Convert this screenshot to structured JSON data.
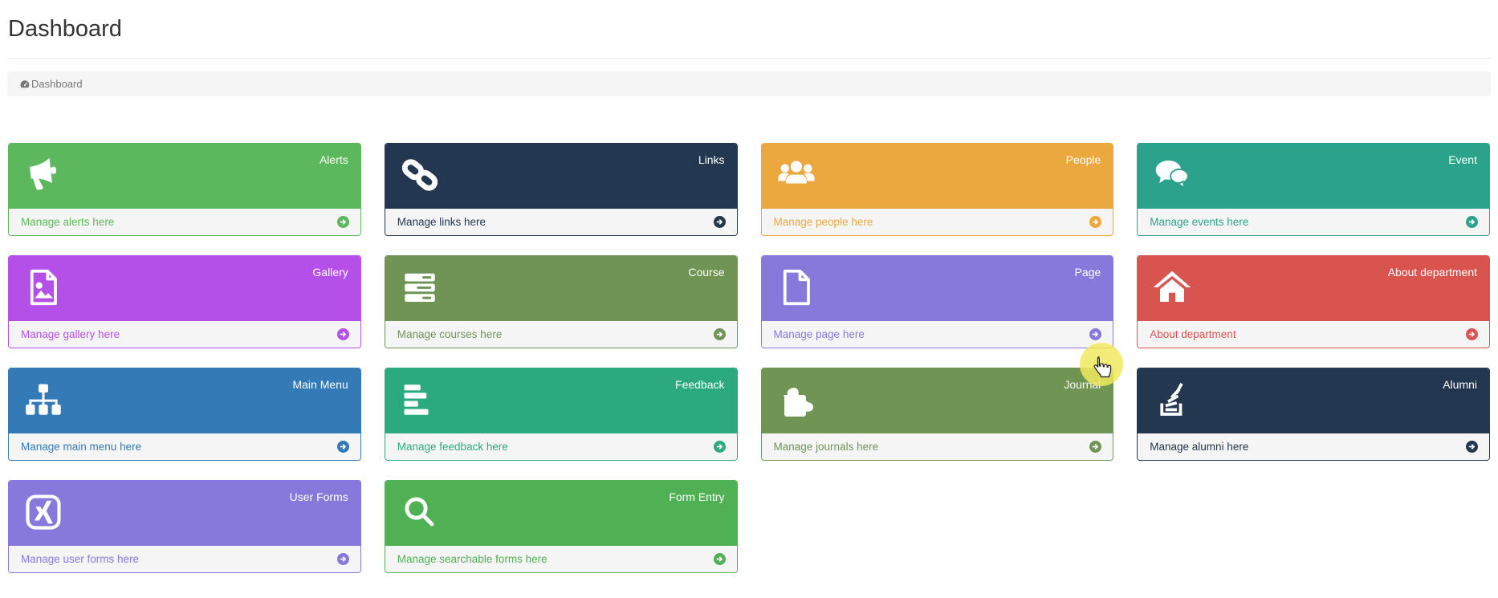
{
  "page": {
    "title": "Dashboard"
  },
  "breadcrumb": {
    "icon": "dashboard-icon",
    "label": "Dashboard"
  },
  "tiles": [
    {
      "id": "alerts",
      "label": "Alerts",
      "footer": "Manage alerts here",
      "color": "#5CB85C",
      "icon": "bullhorn-icon"
    },
    {
      "id": "links",
      "label": "Links",
      "footer": "Manage links here",
      "color": "#233750",
      "icon": "chain-link-icon"
    },
    {
      "id": "people",
      "label": "People",
      "footer": "Manage people here",
      "color": "#EBA83F",
      "icon": "users-icon"
    },
    {
      "id": "event",
      "label": "Event",
      "footer": "Manage events here",
      "color": "#2BA28C",
      "icon": "comments-icon"
    },
    {
      "id": "gallery",
      "label": "Gallery",
      "footer": "Manage gallery here",
      "color": "#B44FE8",
      "icon": "image-file-icon"
    },
    {
      "id": "course",
      "label": "Course",
      "footer": "Manage courses here",
      "color": "#6F9454",
      "icon": "server-icon"
    },
    {
      "id": "page",
      "label": "Page",
      "footer": "Manage page here",
      "color": "#8779DC",
      "icon": "file-icon"
    },
    {
      "id": "about-department",
      "label": "About department",
      "footer": "About department",
      "color": "#D9534F",
      "icon": "home-icon"
    },
    {
      "id": "main-menu",
      "label": "Main Menu",
      "footer": "Manage main menu here",
      "color": "#337AB7",
      "icon": "sitemap-icon"
    },
    {
      "id": "feedback",
      "label": "Feedback",
      "footer": "Manage feedback here",
      "color": "#2BAA7F",
      "icon": "align-left-icon"
    },
    {
      "id": "journal",
      "label": "Journal",
      "footer": "Manage journals here",
      "color": "#6F9454",
      "icon": "puzzle-piece-icon"
    },
    {
      "id": "alumni",
      "label": "Alumni",
      "footer": "Manage alumni here",
      "color": "#233750",
      "icon": "stack-overflow-icon"
    },
    {
      "id": "user-forms",
      "label": "User Forms",
      "footer": "Manage user forms here",
      "color": "#8779DC",
      "icon": "xing-icon"
    },
    {
      "id": "form-entry",
      "label": "Form Entry",
      "footer": "Manage searchable forms here",
      "color": "#4FB153",
      "icon": "search-icon"
    }
  ],
  "cursor": {
    "highlight_color": "#F1E95F"
  }
}
